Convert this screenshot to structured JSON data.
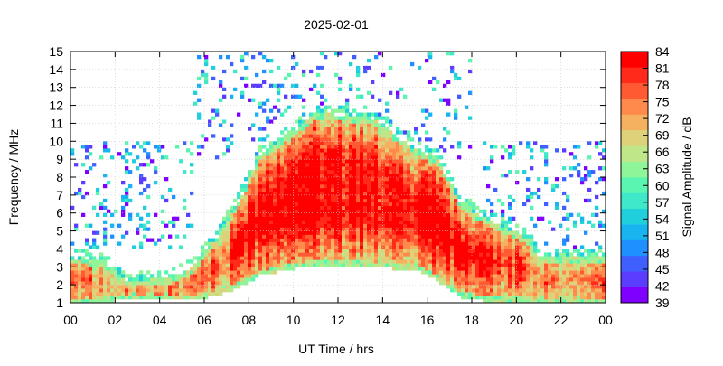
{
  "chart_data": {
    "type": "heatmap",
    "title": "2025-02-01",
    "xlabel": "UT Time / hrs",
    "ylabel": "Frequency / MHz",
    "colorbar_label": "Signal Amplitude / dB",
    "xlim": [
      0,
      24
    ],
    "ylim": [
      1,
      15
    ],
    "x_tick_labels": [
      "00",
      "02",
      "04",
      "06",
      "08",
      "10",
      "12",
      "14",
      "16",
      "18",
      "20",
      "22",
      "00"
    ],
    "y_tick_labels": [
      "1",
      "2",
      "3",
      "4",
      "5",
      "6",
      "7",
      "8",
      "9",
      "10",
      "11",
      "12",
      "13",
      "14",
      "15"
    ],
    "colorbar_ticks": [
      "39",
      "42",
      "45",
      "48",
      "51",
      "54",
      "57",
      "60",
      "63",
      "66",
      "69",
      "72",
      "75",
      "78",
      "81",
      "84"
    ],
    "colorbar_range": [
      39,
      84
    ],
    "colorbar_colors": [
      "#7f00ff",
      "#5a3dff",
      "#3f5fff",
      "#1e90ff",
      "#17b4f0",
      "#1fd0dc",
      "#3fe8c8",
      "#5af5b0",
      "#8ef598",
      "#c0e68a",
      "#ddd27a",
      "#f5b060",
      "#ff8a4c",
      "#ff5a32",
      "#ff2a1a",
      "#ff0000"
    ],
    "grid": true,
    "intensity_profile": {
      "description_hours": [
        0,
        1.5,
        2.5,
        4.5,
        5.5,
        6.5,
        7.5,
        8.5,
        10.5,
        11,
        13.5,
        15.5,
        16.5,
        17.5,
        18.5,
        20.5,
        21,
        24
      ],
      "max_frequency_mhz": [
        3.5,
        3.3,
        2.2,
        2.4,
        3.0,
        4.5,
        6.5,
        9.2,
        11.0,
        11.6,
        11.3,
        9.5,
        9.0,
        6.5,
        5.8,
        4.6,
        3.5,
        3.5
      ],
      "min_frequency_mhz": [
        1.0,
        1.0,
        1.2,
        1.2,
        1.1,
        1.4,
        1.8,
        2.5,
        3.0,
        3.0,
        3.0,
        2.8,
        2.2,
        1.3,
        1.1,
        1.0,
        1.0,
        1.0
      ]
    }
  }
}
